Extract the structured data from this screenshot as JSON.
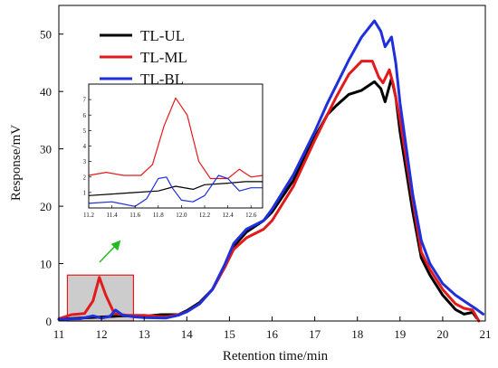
{
  "chart_data": {
    "type": "line",
    "xlabel": "Retention time/min",
    "ylabel": "Response/mV",
    "xlim": [
      11,
      21
    ],
    "ylim": [
      0,
      55
    ],
    "x_ticks": [
      "11",
      "12",
      "13",
      "14",
      "15",
      "16",
      "17",
      "18",
      "19",
      "20",
      "21"
    ],
    "y_ticks": [
      "0",
      "10",
      "20",
      "30",
      "40",
      "50"
    ],
    "series": [
      {
        "name": "TL-UL",
        "color": "#000000",
        "points": [
          [
            11,
            0.3
          ],
          [
            11.5,
            0.5
          ],
          [
            12,
            0.7
          ],
          [
            12.5,
            0.9
          ],
          [
            13,
            0.8
          ],
          [
            13.4,
            1.1
          ],
          [
            13.8,
            1.1
          ],
          [
            14.0,
            1.8
          ],
          [
            14.3,
            3.2
          ],
          [
            14.6,
            5.5
          ],
          [
            14.9,
            9.5
          ],
          [
            15.1,
            13.0
          ],
          [
            15.4,
            15.5
          ],
          [
            15.8,
            17.5
          ],
          [
            16.0,
            19.0
          ],
          [
            16.5,
            24.5
          ],
          [
            17.0,
            32.0
          ],
          [
            17.3,
            36.0
          ],
          [
            17.5,
            37.5
          ],
          [
            17.8,
            39.5
          ],
          [
            18.1,
            40.2
          ],
          [
            18.4,
            41.7
          ],
          [
            18.55,
            40.5
          ],
          [
            18.65,
            38.2
          ],
          [
            18.8,
            42.3
          ],
          [
            18.9,
            39.0
          ],
          [
            19.0,
            33.0
          ],
          [
            19.3,
            19.0
          ],
          [
            19.5,
            11.0
          ],
          [
            19.7,
            8.0
          ],
          [
            20.0,
            4.5
          ],
          [
            20.3,
            2.0
          ],
          [
            20.5,
            1.2
          ],
          [
            20.7,
            1.5
          ],
          [
            20.8,
            0.5
          ]
        ]
      },
      {
        "name": "TL-ML",
        "color": "#e31a1c",
        "points": [
          [
            11,
            0.4
          ],
          [
            11.3,
            1.1
          ],
          [
            11.6,
            1.3
          ],
          [
            11.8,
            3.5
          ],
          [
            11.95,
            7.6
          ],
          [
            12.1,
            4.5
          ],
          [
            12.3,
            1.3
          ],
          [
            12.6,
            1.0
          ],
          [
            13.0,
            1.0
          ],
          [
            13.5,
            0.7
          ],
          [
            13.8,
            1.1
          ],
          [
            14.0,
            1.6
          ],
          [
            14.3,
            3.0
          ],
          [
            14.6,
            5.5
          ],
          [
            14.9,
            9.5
          ],
          [
            15.1,
            12.5
          ],
          [
            15.4,
            14.5
          ],
          [
            15.8,
            16.0
          ],
          [
            16.0,
            17.5
          ],
          [
            16.5,
            23.5
          ],
          [
            17.0,
            31.5
          ],
          [
            17.3,
            36.0
          ],
          [
            17.5,
            39.0
          ],
          [
            17.8,
            43.0
          ],
          [
            18.1,
            45.3
          ],
          [
            18.35,
            45.3
          ],
          [
            18.5,
            42.5
          ],
          [
            18.6,
            41.5
          ],
          [
            18.75,
            43.8
          ],
          [
            18.85,
            41.0
          ],
          [
            19.0,
            35.0
          ],
          [
            19.3,
            21.0
          ],
          [
            19.5,
            12.0
          ],
          [
            19.7,
            9.0
          ],
          [
            20.0,
            5.5
          ],
          [
            20.3,
            3.0
          ],
          [
            20.5,
            2.2
          ],
          [
            20.7,
            1.9
          ],
          [
            20.85,
            0.0
          ]
        ]
      },
      {
        "name": "TL-BL",
        "color": "#1f2fdc",
        "points": [
          [
            11,
            0.3
          ],
          [
            11.5,
            0.4
          ],
          [
            11.8,
            0.9
          ],
          [
            12.0,
            0.5
          ],
          [
            12.2,
            0.8
          ],
          [
            12.33,
            1.9
          ],
          [
            12.5,
            1.0
          ],
          [
            12.8,
            0.7
          ],
          [
            13.0,
            0.6
          ],
          [
            13.5,
            0.5
          ],
          [
            13.8,
            1.0
          ],
          [
            14.0,
            1.6
          ],
          [
            14.3,
            3.0
          ],
          [
            14.6,
            5.5
          ],
          [
            14.9,
            10.0
          ],
          [
            15.1,
            13.5
          ],
          [
            15.4,
            16.0
          ],
          [
            15.8,
            17.5
          ],
          [
            16.0,
            19.5
          ],
          [
            16.5,
            25.5
          ],
          [
            17.0,
            33.0
          ],
          [
            17.3,
            38.0
          ],
          [
            17.5,
            41.0
          ],
          [
            17.8,
            45.5
          ],
          [
            18.1,
            49.5
          ],
          [
            18.4,
            52.3
          ],
          [
            18.55,
            50.5
          ],
          [
            18.65,
            47.8
          ],
          [
            18.8,
            49.5
          ],
          [
            18.9,
            45.0
          ],
          [
            19.0,
            38.0
          ],
          [
            19.3,
            22.0
          ],
          [
            19.5,
            14.0
          ],
          [
            19.7,
            10.0
          ],
          [
            20.0,
            6.5
          ],
          [
            20.3,
            4.5
          ],
          [
            20.6,
            3.0
          ],
          [
            20.8,
            2.0
          ],
          [
            20.95,
            1.2
          ]
        ]
      }
    ],
    "inset": {
      "xlim": [
        11.2,
        12.7
      ],
      "ylim": [
        0,
        8
      ],
      "x_ticks": [
        "11.2",
        "11.4",
        "11.6",
        "11.8",
        "12.0",
        "12.2",
        "12.4",
        "12.6"
      ],
      "y_ticks": [
        "1",
        "2",
        "3",
        "4",
        "5",
        "6",
        "7"
      ],
      "highlight_xlim": [
        11.2,
        12.75
      ],
      "highlight_ylim": [
        0,
        8
      ],
      "series": [
        {
          "color": "#000000",
          "points": [
            [
              11.2,
              0.8
            ],
            [
              11.4,
              0.9
            ],
            [
              11.6,
              1.0
            ],
            [
              11.8,
              1.1
            ],
            [
              11.95,
              1.4
            ],
            [
              12.1,
              1.2
            ],
            [
              12.2,
              1.5
            ],
            [
              12.4,
              1.6
            ],
            [
              12.55,
              1.7
            ],
            [
              12.7,
              1.7
            ]
          ]
        },
        {
          "color": "#e31a1c",
          "points": [
            [
              11.2,
              2.1
            ],
            [
              11.35,
              2.3
            ],
            [
              11.5,
              2.1
            ],
            [
              11.65,
              2.1
            ],
            [
              11.75,
              2.8
            ],
            [
              11.85,
              5.3
            ],
            [
              11.95,
              7.1
            ],
            [
              12.05,
              6.0
            ],
            [
              12.15,
              3.0
            ],
            [
              12.25,
              1.9
            ],
            [
              12.4,
              1.9
            ],
            [
              12.5,
              2.5
            ],
            [
              12.6,
              2.0
            ],
            [
              12.7,
              2.1
            ]
          ]
        },
        {
          "color": "#1f2fdc",
          "points": [
            [
              11.2,
              0.3
            ],
            [
              11.4,
              0.4
            ],
            [
              11.6,
              0.1
            ],
            [
              11.7,
              0.6
            ],
            [
              11.8,
              1.9
            ],
            [
              11.87,
              2.0
            ],
            [
              11.92,
              1.3
            ],
            [
              12.0,
              0.5
            ],
            [
              12.1,
              0.4
            ],
            [
              12.2,
              0.8
            ],
            [
              12.32,
              2.1
            ],
            [
              12.4,
              1.9
            ],
            [
              12.5,
              1.1
            ],
            [
              12.6,
              1.3
            ],
            [
              12.7,
              1.3
            ]
          ]
        }
      ]
    },
    "colors": {
      "highlight_fill": "#cccccc",
      "highlight_stroke": "#e31a1c",
      "arrow": "#22bb22"
    }
  }
}
